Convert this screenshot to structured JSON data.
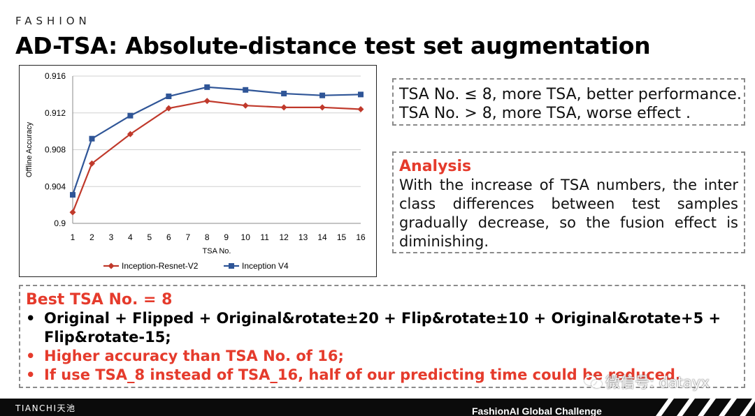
{
  "header": {
    "brand": "FASHION",
    "title": "AD-TSA: Absolute-distance test set augmentation"
  },
  "chart_data": {
    "type": "line",
    "categories": [
      "1",
      "2",
      "3",
      "4",
      "5",
      "6",
      "7",
      "8",
      "9",
      "10",
      "11",
      "12",
      "13",
      "14",
      "15",
      "16"
    ],
    "x": [
      1,
      2,
      4,
      6,
      8,
      10,
      12,
      14,
      16
    ],
    "series": [
      {
        "name": "Inception-Resnet-V2",
        "color": "#c0392b",
        "marker": "diamond",
        "values": [
          0.9012,
          0.9065,
          0.9097,
          0.9125,
          0.9133,
          0.9128,
          0.9126,
          0.9126,
          0.9124
        ]
      },
      {
        "name": "Inception V4",
        "color": "#2f5597",
        "marker": "square",
        "values": [
          0.9031,
          0.9092,
          0.9117,
          0.9138,
          0.9148,
          0.9145,
          0.9141,
          0.9139,
          0.914
        ]
      }
    ],
    "yticks": [
      "0.9",
      "0.904",
      "0.908",
      "0.912",
      "0.916"
    ],
    "ylim": [
      0.9,
      0.916
    ],
    "xlabel": "TSA No.",
    "ylabel": "Offline Accuracy",
    "grid": "horizontal",
    "legend": "bottom"
  },
  "observations": {
    "line1": "TSA No. ≤ 8, more TSA, better performance.",
    "line2": "TSA No. > 8, more TSA, worse effect ."
  },
  "analysis": {
    "heading": "Analysis",
    "body": "With the increase of TSA numbers, the inter class differences between test samples gradually decrease, so the fusion effect is diminishing."
  },
  "best": {
    "heading": "Best TSA No. = 8",
    "bullet": "•",
    "items": [
      {
        "text": "Original + Flipped + Original&rotate±20 + Flip&rotate±10 + Original&rotate+5 + Flip&rotate-15;",
        "tone": "black"
      },
      {
        "text": "Higher accuracy than TSA  No. of 16;",
        "tone": "red"
      },
      {
        "text": "If use TSA_8 instead of TSA_16, half of our predicting time could be reduced.",
        "tone": "red"
      }
    ]
  },
  "watermark": {
    "text": "微信号: datayx",
    "icon": "wechat-icon"
  },
  "footer": {
    "logo": "TIANCHI天池",
    "challenge": "FashionAI  Global Challenge"
  }
}
